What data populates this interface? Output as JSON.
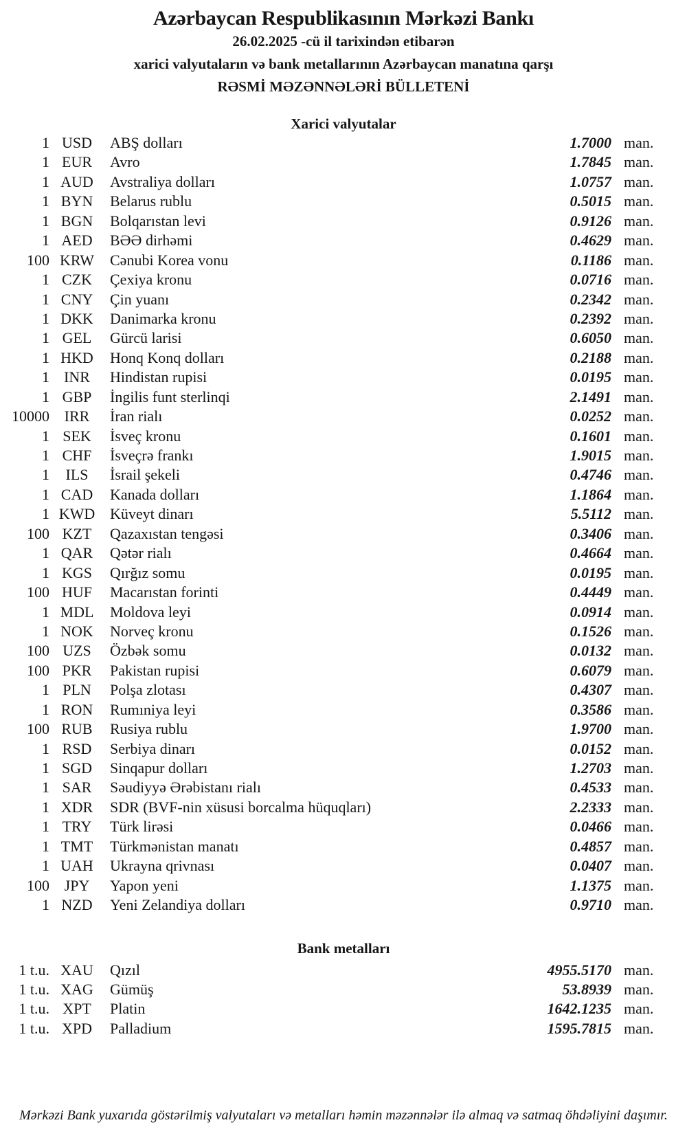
{
  "colors": {
    "background": "#ffffff",
    "text": "#161616"
  },
  "header": {
    "bank_name": "Azərbaycan Respublikasının Mərkəzi Bankı",
    "date_line": "26.02.2025 -cü il tarixindən etibarən",
    "subtitle": "xarici valyutaların və bank metallarının Azərbaycan manatına qarşı",
    "bulletin_title": "RƏSMİ MƏZƏNNƏLƏRİ BÜLLETENİ"
  },
  "currencies": {
    "title": "Xarici valyutalar",
    "rows": [
      {
        "qty": "1",
        "code": "USD",
        "name": "ABŞ dolları",
        "rate": "1.7000",
        "unit": "man."
      },
      {
        "qty": "1",
        "code": "EUR",
        "name": "Avro",
        "rate": "1.7845",
        "unit": "man."
      },
      {
        "qty": "1",
        "code": "AUD",
        "name": "Avstraliya dolları",
        "rate": "1.0757",
        "unit": "man."
      },
      {
        "qty": "1",
        "code": "BYN",
        "name": "Belarus rublu",
        "rate": "0.5015",
        "unit": "man."
      },
      {
        "qty": "1",
        "code": "BGN",
        "name": "Bolqarıstan levi",
        "rate": "0.9126",
        "unit": "man."
      },
      {
        "qty": "1",
        "code": "AED",
        "name": "BƏƏ dirhəmi",
        "rate": "0.4629",
        "unit": "man."
      },
      {
        "qty": "100",
        "code": "KRW",
        "name": "Cənubi Korea vonu",
        "rate": "0.1186",
        "unit": "man."
      },
      {
        "qty": "1",
        "code": "CZK",
        "name": "Çexiya kronu",
        "rate": "0.0716",
        "unit": "man."
      },
      {
        "qty": "1",
        "code": "CNY",
        "name": "Çin yuanı",
        "rate": "0.2342",
        "unit": "man."
      },
      {
        "qty": "1",
        "code": "DKK",
        "name": "Danimarka kronu",
        "rate": "0.2392",
        "unit": "man."
      },
      {
        "qty": "1",
        "code": "GEL",
        "name": "Gürcü larisi",
        "rate": "0.6050",
        "unit": "man."
      },
      {
        "qty": "1",
        "code": "HKD",
        "name": "Honq Konq dolları",
        "rate": "0.2188",
        "unit": "man."
      },
      {
        "qty": "1",
        "code": "INR",
        "name": "Hindistan rupisi",
        "rate": "0.0195",
        "unit": "man."
      },
      {
        "qty": "1",
        "code": "GBP",
        "name": "İngilis funt sterlinqi",
        "rate": "2.1491",
        "unit": "man."
      },
      {
        "qty": "10000",
        "code": "IRR",
        "name": "İran rialı",
        "rate": "0.0252",
        "unit": "man."
      },
      {
        "qty": "1",
        "code": "SEK",
        "name": "İsveç kronu",
        "rate": "0.1601",
        "unit": "man."
      },
      {
        "qty": "1",
        "code": "CHF",
        "name": "İsveçrə frankı",
        "rate": "1.9015",
        "unit": "man."
      },
      {
        "qty": "1",
        "code": "ILS",
        "name": "İsrail şekeli",
        "rate": "0.4746",
        "unit": "man."
      },
      {
        "qty": "1",
        "code": "CAD",
        "name": "Kanada dolları",
        "rate": "1.1864",
        "unit": "man."
      },
      {
        "qty": "1",
        "code": "KWD",
        "name": "Küveyt dinarı",
        "rate": "5.5112",
        "unit": "man."
      },
      {
        "qty": "100",
        "code": "KZT",
        "name": "Qazaxıstan tengəsi",
        "rate": "0.3406",
        "unit": "man."
      },
      {
        "qty": "1",
        "code": "QAR",
        "name": "Qətər rialı",
        "rate": "0.4664",
        "unit": "man."
      },
      {
        "qty": "1",
        "code": "KGS",
        "name": "Qırğız somu",
        "rate": "0.0195",
        "unit": "man."
      },
      {
        "qty": "100",
        "code": "HUF",
        "name": "Macarıstan forinti",
        "rate": "0.4449",
        "unit": "man."
      },
      {
        "qty": "1",
        "code": "MDL",
        "name": "Moldova leyi",
        "rate": "0.0914",
        "unit": "man."
      },
      {
        "qty": "1",
        "code": "NOK",
        "name": "Norveç kronu",
        "rate": "0.1526",
        "unit": "man."
      },
      {
        "qty": "100",
        "code": "UZS",
        "name": "Özbək somu",
        "rate": "0.0132",
        "unit": "man."
      },
      {
        "qty": "100",
        "code": "PKR",
        "name": "Pakistan rupisi",
        "rate": "0.6079",
        "unit": "man."
      },
      {
        "qty": "1",
        "code": "PLN",
        "name": "Polşa zlotası",
        "rate": "0.4307",
        "unit": "man."
      },
      {
        "qty": "1",
        "code": "RON",
        "name": "Rumıniya leyi",
        "rate": "0.3586",
        "unit": "man."
      },
      {
        "qty": "100",
        "code": "RUB",
        "name": "Rusiya rublu",
        "rate": "1.9700",
        "unit": "man."
      },
      {
        "qty": "1",
        "code": "RSD",
        "name": "Serbiya dinarı",
        "rate": "0.0152",
        "unit": "man."
      },
      {
        "qty": "1",
        "code": "SGD",
        "name": "Sinqapur dolları",
        "rate": "1.2703",
        "unit": "man."
      },
      {
        "qty": "1",
        "code": "SAR",
        "name": "Səudiyyə Ərəbistanı rialı",
        "rate": "0.4533",
        "unit": "man."
      },
      {
        "qty": "1",
        "code": "XDR",
        "name": "SDR (BVF-nin xüsusi borcalma hüquqları)",
        "rate": "2.2333",
        "unit": "man."
      },
      {
        "qty": "1",
        "code": "TRY",
        "name": "Türk lirəsi",
        "rate": "0.0466",
        "unit": "man."
      },
      {
        "qty": "1",
        "code": "TMT",
        "name": "Türkmənistan manatı",
        "rate": "0.4857",
        "unit": "man."
      },
      {
        "qty": "1",
        "code": "UAH",
        "name": "Ukrayna qrivnası",
        "rate": "0.0407",
        "unit": "man."
      },
      {
        "qty": "100",
        "code": "JPY",
        "name": "Yapon yeni",
        "rate": "1.1375",
        "unit": "man."
      },
      {
        "qty": "1",
        "code": "NZD",
        "name": "Yeni Zelandiya dolları",
        "rate": "0.9710",
        "unit": "man."
      }
    ]
  },
  "metals": {
    "title": "Bank metalları",
    "rows": [
      {
        "qty": "1 t.u.",
        "code": "XAU",
        "name": "Qızıl",
        "rate": "4955.5170",
        "unit": "man."
      },
      {
        "qty": "1 t.u.",
        "code": "XAG",
        "name": "Gümüş",
        "rate": "53.8939",
        "unit": "man."
      },
      {
        "qty": "1 t.u.",
        "code": "XPT",
        "name": "Platin",
        "rate": "1642.1235",
        "unit": "man."
      },
      {
        "qty": "1 t.u.",
        "code": "XPD",
        "name": "Palladium",
        "rate": "1595.7815",
        "unit": "man."
      }
    ]
  },
  "footer": {
    "note": "Mərkəzi Bank yuxarıda göstərilmiş valyutaları və metalları həmin məzənnələr ilə almaq və satmaq öhdəliyini daşımır."
  }
}
